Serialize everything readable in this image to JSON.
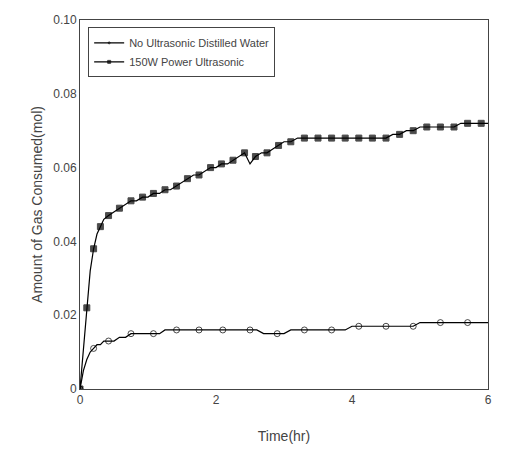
{
  "chart_data": {
    "type": "line",
    "xlabel": "Time(hr)",
    "ylabel": "Amount of Gas Consumed(mol)",
    "xlim": [
      0,
      6
    ],
    "ylim": [
      0,
      0.1
    ],
    "xticks": [
      0,
      2,
      4,
      6
    ],
    "yticks": [
      0,
      0.02,
      0.04,
      0.06,
      0.08,
      {
        "value": 0.1,
        "label": "0.10"
      }
    ],
    "grid": false,
    "legend": "upper left",
    "series": [
      {
        "name": "No Ultrasonic Distilled Water",
        "color": "#000000",
        "marker": "circle-open",
        "x": [
          0,
          0.05,
          0.1,
          0.15,
          0.2,
          0.25,
          0.3,
          0.35,
          0.42,
          0.5,
          0.58,
          0.67,
          0.75,
          0.83,
          0.92,
          1.0,
          1.08,
          1.17,
          1.25,
          1.33,
          1.42,
          1.5,
          1.58,
          1.67,
          1.75,
          1.83,
          1.92,
          2.0,
          2.1,
          2.2,
          2.3,
          2.4,
          2.5,
          2.6,
          2.7,
          2.8,
          2.9,
          3.0,
          3.1,
          3.2,
          3.3,
          3.4,
          3.5,
          3.6,
          3.7,
          3.8,
          3.9,
          4.0,
          4.1,
          4.2,
          4.3,
          4.4,
          4.5,
          4.6,
          4.7,
          4.8,
          4.9,
          5.0,
          5.1,
          5.2,
          5.3,
          5.4,
          5.5,
          5.6,
          5.7,
          5.8,
          5.9,
          6.0
        ],
        "values": [
          0,
          0.005,
          0.008,
          0.01,
          0.011,
          0.012,
          0.012,
          0.013,
          0.013,
          0.013,
          0.014,
          0.014,
          0.015,
          0.015,
          0.015,
          0.015,
          0.015,
          0.015,
          0.016,
          0.016,
          0.016,
          0.016,
          0.016,
          0.016,
          0.016,
          0.016,
          0.016,
          0.016,
          0.016,
          0.016,
          0.016,
          0.016,
          0.016,
          0.016,
          0.015,
          0.015,
          0.015,
          0.015,
          0.016,
          0.016,
          0.016,
          0.016,
          0.016,
          0.016,
          0.016,
          0.016,
          0.016,
          0.017,
          0.017,
          0.017,
          0.017,
          0.017,
          0.017,
          0.017,
          0.017,
          0.017,
          0.017,
          0.018,
          0.018,
          0.018,
          0.018,
          0.018,
          0.018,
          0.018,
          0.018,
          0.018,
          0.018,
          0.018
        ]
      },
      {
        "name": "150W Power Ultrasonic",
        "color": "#000000",
        "marker": "square",
        "x": [
          0,
          0.05,
          0.1,
          0.15,
          0.2,
          0.25,
          0.3,
          0.35,
          0.42,
          0.5,
          0.58,
          0.67,
          0.75,
          0.83,
          0.92,
          1.0,
          1.08,
          1.17,
          1.25,
          1.33,
          1.42,
          1.5,
          1.58,
          1.67,
          1.75,
          1.83,
          1.92,
          2.0,
          2.08,
          2.17,
          2.25,
          2.33,
          2.42,
          2.5,
          2.58,
          2.67,
          2.75,
          2.83,
          2.92,
          3.0,
          3.1,
          3.2,
          3.3,
          3.4,
          3.5,
          3.6,
          3.7,
          3.8,
          3.9,
          4.0,
          4.1,
          4.2,
          4.3,
          4.4,
          4.5,
          4.6,
          4.7,
          4.8,
          4.9,
          5.0,
          5.1,
          5.2,
          5.3,
          5.4,
          5.5,
          5.6,
          5.7,
          5.8,
          5.9,
          6.0
        ],
        "values": [
          0,
          0.01,
          0.022,
          0.032,
          0.038,
          0.042,
          0.044,
          0.046,
          0.047,
          0.048,
          0.049,
          0.05,
          0.051,
          0.051,
          0.052,
          0.052,
          0.053,
          0.053,
          0.054,
          0.054,
          0.055,
          0.056,
          0.057,
          0.058,
          0.058,
          0.059,
          0.06,
          0.06,
          0.061,
          0.061,
          0.062,
          0.063,
          0.064,
          0.061,
          0.063,
          0.064,
          0.064,
          0.065,
          0.066,
          0.067,
          0.067,
          0.068,
          0.068,
          0.068,
          0.068,
          0.068,
          0.068,
          0.068,
          0.068,
          0.068,
          0.068,
          0.068,
          0.068,
          0.068,
          0.068,
          0.069,
          0.069,
          0.07,
          0.07,
          0.071,
          0.071,
          0.071,
          0.071,
          0.071,
          0.071,
          0.072,
          0.072,
          0.072,
          0.072,
          0.072
        ]
      }
    ]
  }
}
